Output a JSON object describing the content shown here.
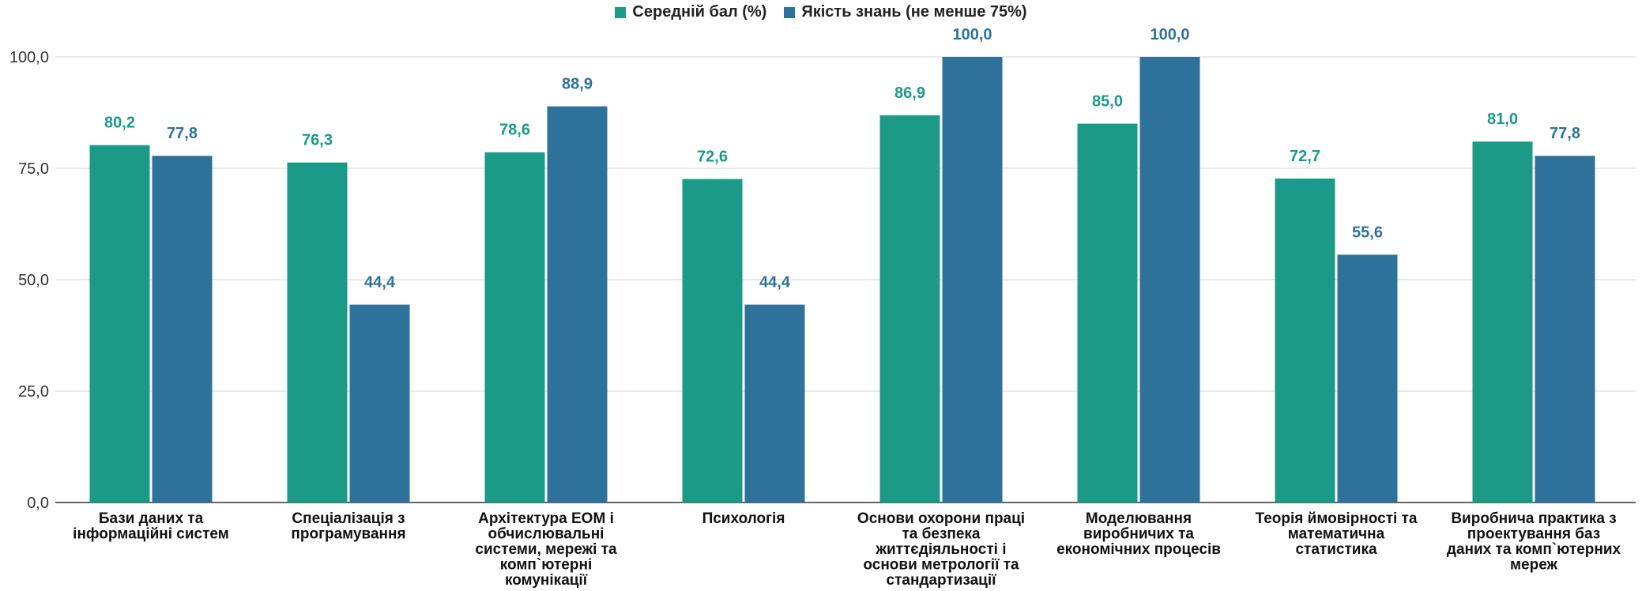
{
  "chart_data": {
    "type": "bar",
    "title": "",
    "xlabel": "",
    "ylabel": "",
    "ylim": [
      0,
      100
    ],
    "yticks": [
      "0,0",
      "25,0",
      "50,0",
      "75,0",
      "100,0"
    ],
    "ytick_values": [
      0,
      25,
      50,
      75,
      100
    ],
    "grid": true,
    "legend_position": "top-center",
    "categories": [
      [
        "Бази даних та",
        "інформаційні систем"
      ],
      [
        "Спеціалізація з",
        "програмування"
      ],
      [
        "Архітектура ЕОМ і",
        "обчислювальні",
        "системи, мережі та",
        "комп`ютерні",
        "комунікації"
      ],
      [
        "Психологія"
      ],
      [
        "Основи охорони праці",
        "та безпека",
        "життєдіяльності і",
        "основи метрології та",
        "стандартизації"
      ],
      [
        "Моделювання",
        "виробничих та",
        "економічних процесів"
      ],
      [
        "Теорія ймовірності та",
        "математична",
        "статистика"
      ],
      [
        "Виробнича практика з",
        "проектування баз",
        "даних та комп`ютерних",
        "мереж"
      ]
    ],
    "series": [
      {
        "name": "Середній бал (%)",
        "color": "#1a9a87",
        "values": [
          80.2,
          76.3,
          78.6,
          72.6,
          86.9,
          85.0,
          72.7,
          81.0
        ],
        "labels": [
          "80,2",
          "76,3",
          "78,6",
          "72,6",
          "86,9",
          "85,0",
          "72,7",
          "81,0"
        ]
      },
      {
        "name": "Якість знань (не менше 75%)",
        "color": "#2e729b",
        "values": [
          77.8,
          44.4,
          88.9,
          44.4,
          100.0,
          100.0,
          55.6,
          77.8
        ],
        "labels": [
          "77,8",
          "44,4",
          "88,9",
          "44,4",
          "100,0",
          "100,0",
          "55,6",
          "77,8"
        ]
      }
    ]
  }
}
